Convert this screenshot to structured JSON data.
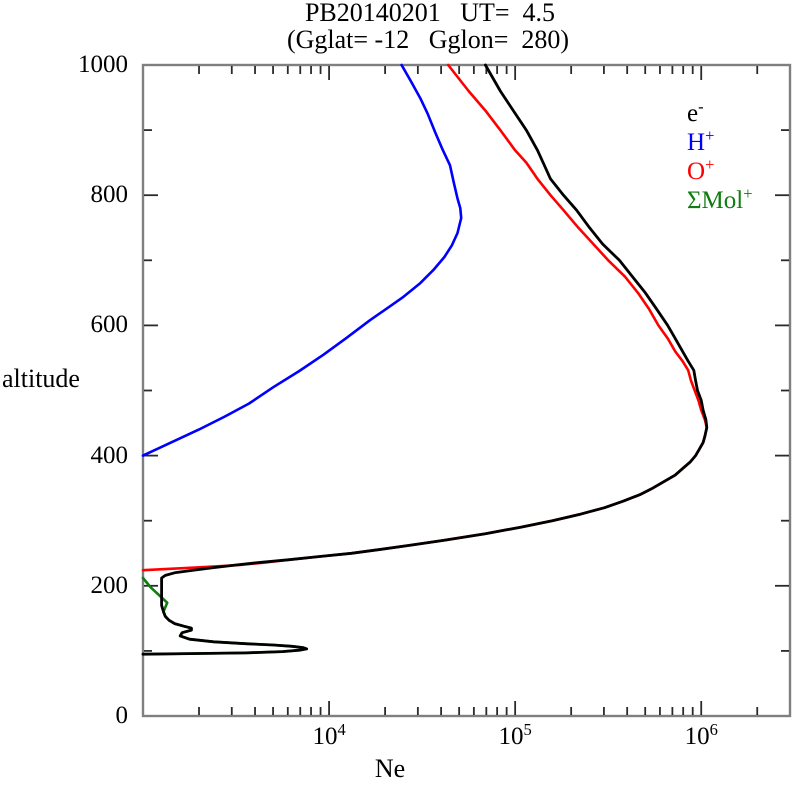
{
  "chart_data": {
    "type": "line",
    "title": "PB20140201   UT=  4.5",
    "subtitle": "(Gglat= -12   Gglon=  280)",
    "xlabel": "Ne",
    "ylabel": "altitude",
    "x_scale": "log",
    "x_range_log10": [
      3,
      6.4771
    ],
    "y_range": [
      0,
      1000
    ],
    "grid": false,
    "axis_color": "#7f7f7f",
    "tick_color": "#2a2a2a",
    "x_major_ticks": [
      {
        "exp": 4,
        "base": "10",
        "sup": "4"
      },
      {
        "exp": 5,
        "base": "10",
        "sup": "5"
      },
      {
        "exp": 6,
        "base": "10",
        "sup": "6"
      }
    ],
    "y_major_ticks": [
      0,
      200,
      400,
      600,
      800,
      1000
    ],
    "y_minor_ticks": [
      100,
      300,
      500,
      700,
      900
    ],
    "legend": {
      "position": "upper-right-inside",
      "items": [
        {
          "base": "e",
          "sup": "-",
          "color": "#000000",
          "series": "e-"
        },
        {
          "base": "H",
          "sup": "+",
          "color": "#0000ff",
          "series": "H+"
        },
        {
          "base": "O",
          "sup": "+",
          "color": "#ff0000",
          "series": "O+"
        },
        {
          "base": "ΣMol",
          "sup": "+",
          "color": "#0f7d0f",
          "series": "Mol+"
        }
      ]
    },
    "series": [
      {
        "name": "H+",
        "color": "#0000ff",
        "width": 2.6,
        "points_alt_log10ne": [
          [
            400,
            3.0
          ],
          [
            420,
            3.15
          ],
          [
            440,
            3.3
          ],
          [
            460,
            3.44
          ],
          [
            480,
            3.57
          ],
          [
            505,
            3.7
          ],
          [
            530,
            3.84
          ],
          [
            555,
            3.97
          ],
          [
            580,
            4.09
          ],
          [
            608,
            4.22
          ],
          [
            630,
            4.33
          ],
          [
            644,
            4.4
          ],
          [
            665,
            4.49
          ],
          [
            685,
            4.56
          ],
          [
            705,
            4.62
          ],
          [
            723,
            4.66
          ],
          [
            742,
            4.69
          ],
          [
            765,
            4.71
          ],
          [
            780,
            4.705
          ],
          [
            795,
            4.69
          ],
          [
            820,
            4.67
          ],
          [
            846,
            4.65
          ],
          [
            870,
            4.61
          ],
          [
            897,
            4.57
          ],
          [
            925,
            4.53
          ],
          [
            949,
            4.49
          ],
          [
            975,
            4.44
          ],
          [
            1000,
            4.39
          ]
        ]
      },
      {
        "name": "O+",
        "color": "#ff0000",
        "width": 2.6,
        "points_alt_log10ne": [
          [
            224,
            3.0
          ],
          [
            228,
            3.28
          ],
          [
            232,
            3.52
          ],
          [
            236,
            3.66
          ],
          [
            240,
            3.78
          ],
          [
            245,
            3.95
          ],
          [
            250,
            4.12
          ],
          [
            256,
            4.28
          ],
          [
            262,
            4.43
          ],
          [
            270,
            4.62
          ],
          [
            280,
            4.84
          ],
          [
            290,
            5.03
          ],
          [
            300,
            5.2
          ],
          [
            310,
            5.35
          ],
          [
            320,
            5.48
          ],
          [
            330,
            5.58
          ],
          [
            340,
            5.67
          ],
          [
            350,
            5.74
          ],
          [
            360,
            5.8
          ],
          [
            370,
            5.86
          ],
          [
            380,
            5.9
          ],
          [
            390,
            5.94
          ],
          [
            400,
            5.97
          ],
          [
            410,
            5.99
          ],
          [
            420,
            6.01
          ],
          [
            430,
            6.02
          ],
          [
            443,
            6.03
          ],
          [
            455,
            6.02
          ],
          [
            470,
            6.0
          ],
          [
            485,
            5.985
          ],
          [
            500,
            5.965
          ],
          [
            515,
            5.945
          ],
          [
            531,
            5.93
          ],
          [
            545,
            5.9
          ],
          [
            560,
            5.86
          ],
          [
            580,
            5.82
          ],
          [
            600,
            5.77
          ],
          [
            625,
            5.72
          ],
          [
            650,
            5.66
          ],
          [
            675,
            5.59
          ],
          [
            700,
            5.5
          ],
          [
            725,
            5.42
          ],
          [
            750,
            5.34
          ],
          [
            777,
            5.26
          ],
          [
            800,
            5.19
          ],
          [
            825,
            5.12
          ],
          [
            850,
            5.06
          ],
          [
            869,
            5.0
          ],
          [
            900,
            4.92
          ],
          [
            930,
            4.84
          ],
          [
            960,
            4.75
          ],
          [
            1000,
            4.64
          ]
        ]
      },
      {
        "name": "Mol+",
        "color": "#0f7d0f",
        "width": 2.6,
        "points_alt_log10ne": [
          [
            95,
            3.0
          ],
          [
            96,
            3.3
          ],
          [
            97,
            3.55
          ],
          [
            99,
            3.75
          ],
          [
            101,
            3.84
          ],
          [
            103,
            3.88
          ],
          [
            105,
            3.86
          ],
          [
            107,
            3.8
          ],
          [
            109,
            3.7
          ],
          [
            111,
            3.55
          ],
          [
            114,
            3.38
          ],
          [
            118,
            3.25
          ],
          [
            123,
            3.2
          ],
          [
            128,
            3.21
          ],
          [
            132,
            3.26
          ],
          [
            135,
            3.26
          ],
          [
            138,
            3.22
          ],
          [
            142,
            3.17
          ],
          [
            147,
            3.14
          ],
          [
            153,
            3.12
          ],
          [
            160,
            3.11
          ],
          [
            167,
            3.12
          ],
          [
            174,
            3.13
          ],
          [
            182,
            3.1
          ],
          [
            190,
            3.07
          ],
          [
            198,
            3.04
          ],
          [
            205,
            3.02
          ],
          [
            212,
            3.0
          ]
        ]
      },
      {
        "name": "e-",
        "color": "#000000",
        "width": 2.8,
        "points_alt_log10ne": [
          [
            95,
            3.0
          ],
          [
            96,
            3.3
          ],
          [
            97,
            3.55
          ],
          [
            99,
            3.75
          ],
          [
            101,
            3.84
          ],
          [
            103,
            3.88
          ],
          [
            105,
            3.86
          ],
          [
            107,
            3.8
          ],
          [
            109,
            3.7
          ],
          [
            111,
            3.55
          ],
          [
            114,
            3.38
          ],
          [
            118,
            3.25
          ],
          [
            123,
            3.2
          ],
          [
            128,
            3.21
          ],
          [
            132,
            3.26
          ],
          [
            135,
            3.26
          ],
          [
            138,
            3.22
          ],
          [
            142,
            3.17
          ],
          [
            147,
            3.14
          ],
          [
            153,
            3.12
          ],
          [
            160,
            3.11
          ],
          [
            170,
            3.1
          ],
          [
            180,
            3.1
          ],
          [
            192,
            3.1
          ],
          [
            203,
            3.1
          ],
          [
            210,
            3.1
          ],
          [
            212,
            3.1
          ],
          [
            216,
            3.12
          ],
          [
            220,
            3.17
          ],
          [
            224,
            3.27
          ],
          [
            228,
            3.38
          ],
          [
            232,
            3.5
          ],
          [
            236,
            3.63
          ],
          [
            240,
            3.78
          ],
          [
            245,
            3.95
          ],
          [
            250,
            4.12
          ],
          [
            256,
            4.28
          ],
          [
            262,
            4.43
          ],
          [
            270,
            4.62
          ],
          [
            280,
            4.84
          ],
          [
            290,
            5.03
          ],
          [
            300,
            5.2
          ],
          [
            310,
            5.35
          ],
          [
            320,
            5.48
          ],
          [
            330,
            5.58
          ],
          [
            340,
            5.67
          ],
          [
            350,
            5.74
          ],
          [
            360,
            5.8
          ],
          [
            370,
            5.86
          ],
          [
            380,
            5.9
          ],
          [
            390,
            5.94
          ],
          [
            400,
            5.97
          ],
          [
            410,
            5.99
          ],
          [
            420,
            6.01
          ],
          [
            430,
            6.02
          ],
          [
            443,
            6.03
          ],
          [
            455,
            6.025
          ],
          [
            470,
            6.01
          ],
          [
            485,
            6.0
          ],
          [
            500,
            5.98
          ],
          [
            515,
            5.97
          ],
          [
            531,
            5.96
          ],
          [
            545,
            5.93
          ],
          [
            560,
            5.9
          ],
          [
            580,
            5.86
          ],
          [
            600,
            5.82
          ],
          [
            625,
            5.76
          ],
          [
            650,
            5.7
          ],
          [
            675,
            5.63
          ],
          [
            700,
            5.56
          ],
          [
            725,
            5.47
          ],
          [
            750,
            5.4
          ],
          [
            777,
            5.33
          ],
          [
            800,
            5.26
          ],
          [
            825,
            5.19
          ],
          [
            850,
            5.15
          ],
          [
            869,
            5.12
          ],
          [
            900,
            5.06
          ],
          [
            930,
            4.99
          ],
          [
            960,
            4.92
          ],
          [
            1000,
            4.84
          ]
        ]
      }
    ]
  }
}
